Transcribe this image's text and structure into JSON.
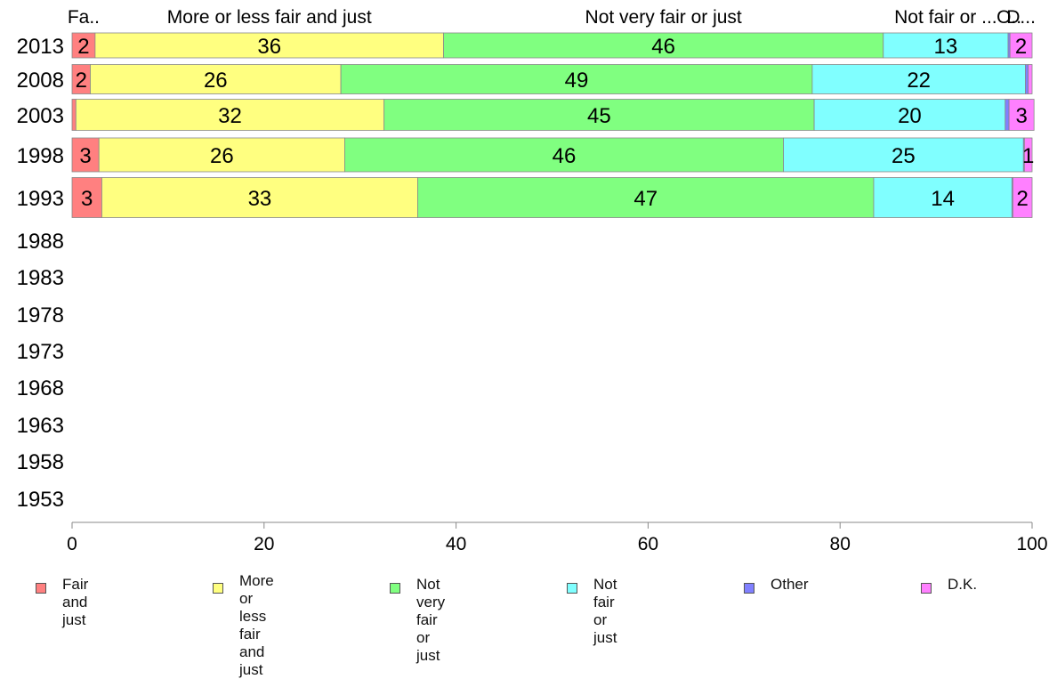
{
  "chart_data": {
    "type": "bar",
    "orientation": "horizontal",
    "stacked": true,
    "categories": [
      "2013",
      "2008",
      "2003",
      "1998",
      "1993",
      "1988",
      "1983",
      "1978",
      "1973",
      "1968",
      "1963",
      "1958",
      "1953"
    ],
    "series": [
      {
        "name": "Fair and just",
        "legend_label": "Fair and just",
        "top_label": "Fa..",
        "color": "#ff8080",
        "values": [
          2.4,
          1.9,
          0.4,
          2.8,
          3.1,
          null,
          null,
          null,
          null,
          null,
          null,
          null,
          null
        ],
        "labels": [
          "2",
          "2",
          "",
          "3",
          "3",
          "",
          "",
          "",
          "",
          "",
          "",
          "",
          ""
        ]
      },
      {
        "name": "More or less fair and just",
        "legend_label": "More or less\nfair and just",
        "top_label": "More or less fair and just",
        "color": "#ffff80",
        "values": [
          36.3,
          26.1,
          32.1,
          25.6,
          32.9,
          null,
          null,
          null,
          null,
          null,
          null,
          null,
          null
        ],
        "labels": [
          "36",
          "26",
          "32",
          "26",
          "33",
          "",
          "",
          "",
          "",
          "",
          "",
          "",
          ""
        ]
      },
      {
        "name": "Not very fair or just",
        "legend_label": "Not very fair or just",
        "top_label": "Not very fair or just",
        "color": "#80ff80",
        "values": [
          45.8,
          49.1,
          44.8,
          45.7,
          47.5,
          null,
          null,
          null,
          null,
          null,
          null,
          null,
          null
        ],
        "labels": [
          "46",
          "49",
          "45",
          "46",
          "47",
          "",
          "",
          "",
          "",
          "",
          "",
          "",
          ""
        ]
      },
      {
        "name": "Not fair or just",
        "legend_label": "Not fair or just",
        "top_label": "Not fair or ...",
        "color": "#80ffff",
        "values": [
          13.0,
          22.2,
          19.9,
          25.0,
          14.4,
          null,
          null,
          null,
          null,
          null,
          null,
          null,
          null
        ],
        "labels": [
          "13",
          "22",
          "20",
          "25",
          "14",
          "",
          "",
          "",
          "",
          "",
          "",
          "",
          ""
        ]
      },
      {
        "name": "Other",
        "legend_label": "Other",
        "top_label": "O..",
        "color": "#8080ff",
        "values": [
          0.2,
          0.3,
          0.4,
          0.1,
          0.1,
          null,
          null,
          null,
          null,
          null,
          null,
          null,
          null
        ],
        "labels": [
          "",
          "",
          "",
          "",
          "",
          "",
          "",
          "",
          "",
          "",
          "",
          "",
          ""
        ]
      },
      {
        "name": "D.K.",
        "legend_label": "D.K.",
        "top_label": "D...",
        "color": "#ff80ff",
        "values": [
          2.3,
          0.4,
          2.6,
          0.8,
          2.0,
          null,
          null,
          null,
          null,
          null,
          null,
          null,
          null
        ],
        "labels": [
          "2",
          "",
          "3",
          "1",
          "2",
          "",
          "",
          "",
          "",
          "",
          "",
          "",
          ""
        ]
      }
    ],
    "xlim": [
      0,
      100
    ],
    "xticks": [
      "0",
      "20",
      "40",
      "60",
      "80",
      "100"
    ],
    "legend_position": "bottom",
    "grid": false
  }
}
